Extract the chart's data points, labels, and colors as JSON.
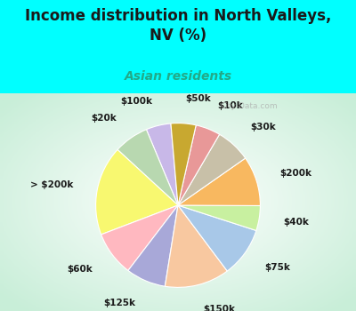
{
  "title": "Income distribution in North Valleys,\nNV (%)",
  "subtitle": "Asian residents",
  "bg_color": "#00FFFF",
  "chart_bg_colors": [
    "#c8eed8",
    "#e8f8f0",
    "#f5fcf8",
    "#eaf8f2"
  ],
  "labels": [
    "$100k",
    "$20k",
    "> $200k",
    "$60k",
    "$125k",
    "$150k",
    "$75k",
    "$40k",
    "$200k",
    "$30k",
    "$10k",
    "$50k"
  ],
  "values": [
    5,
    7,
    18,
    9,
    8,
    13,
    10,
    5,
    10,
    7,
    5,
    5
  ],
  "colors": [
    "#c8b8e8",
    "#b8d8b0",
    "#f8f870",
    "#ffb8c0",
    "#a8a8d8",
    "#f8c8a0",
    "#a8c8e8",
    "#c8f0a0",
    "#f8b860",
    "#c8c0a8",
    "#e89898",
    "#c8a830"
  ],
  "label_fontsize": 7.5,
  "title_fontsize": 12,
  "subtitle_fontsize": 10,
  "watermark": "City-Data.com",
  "startangle": 95
}
